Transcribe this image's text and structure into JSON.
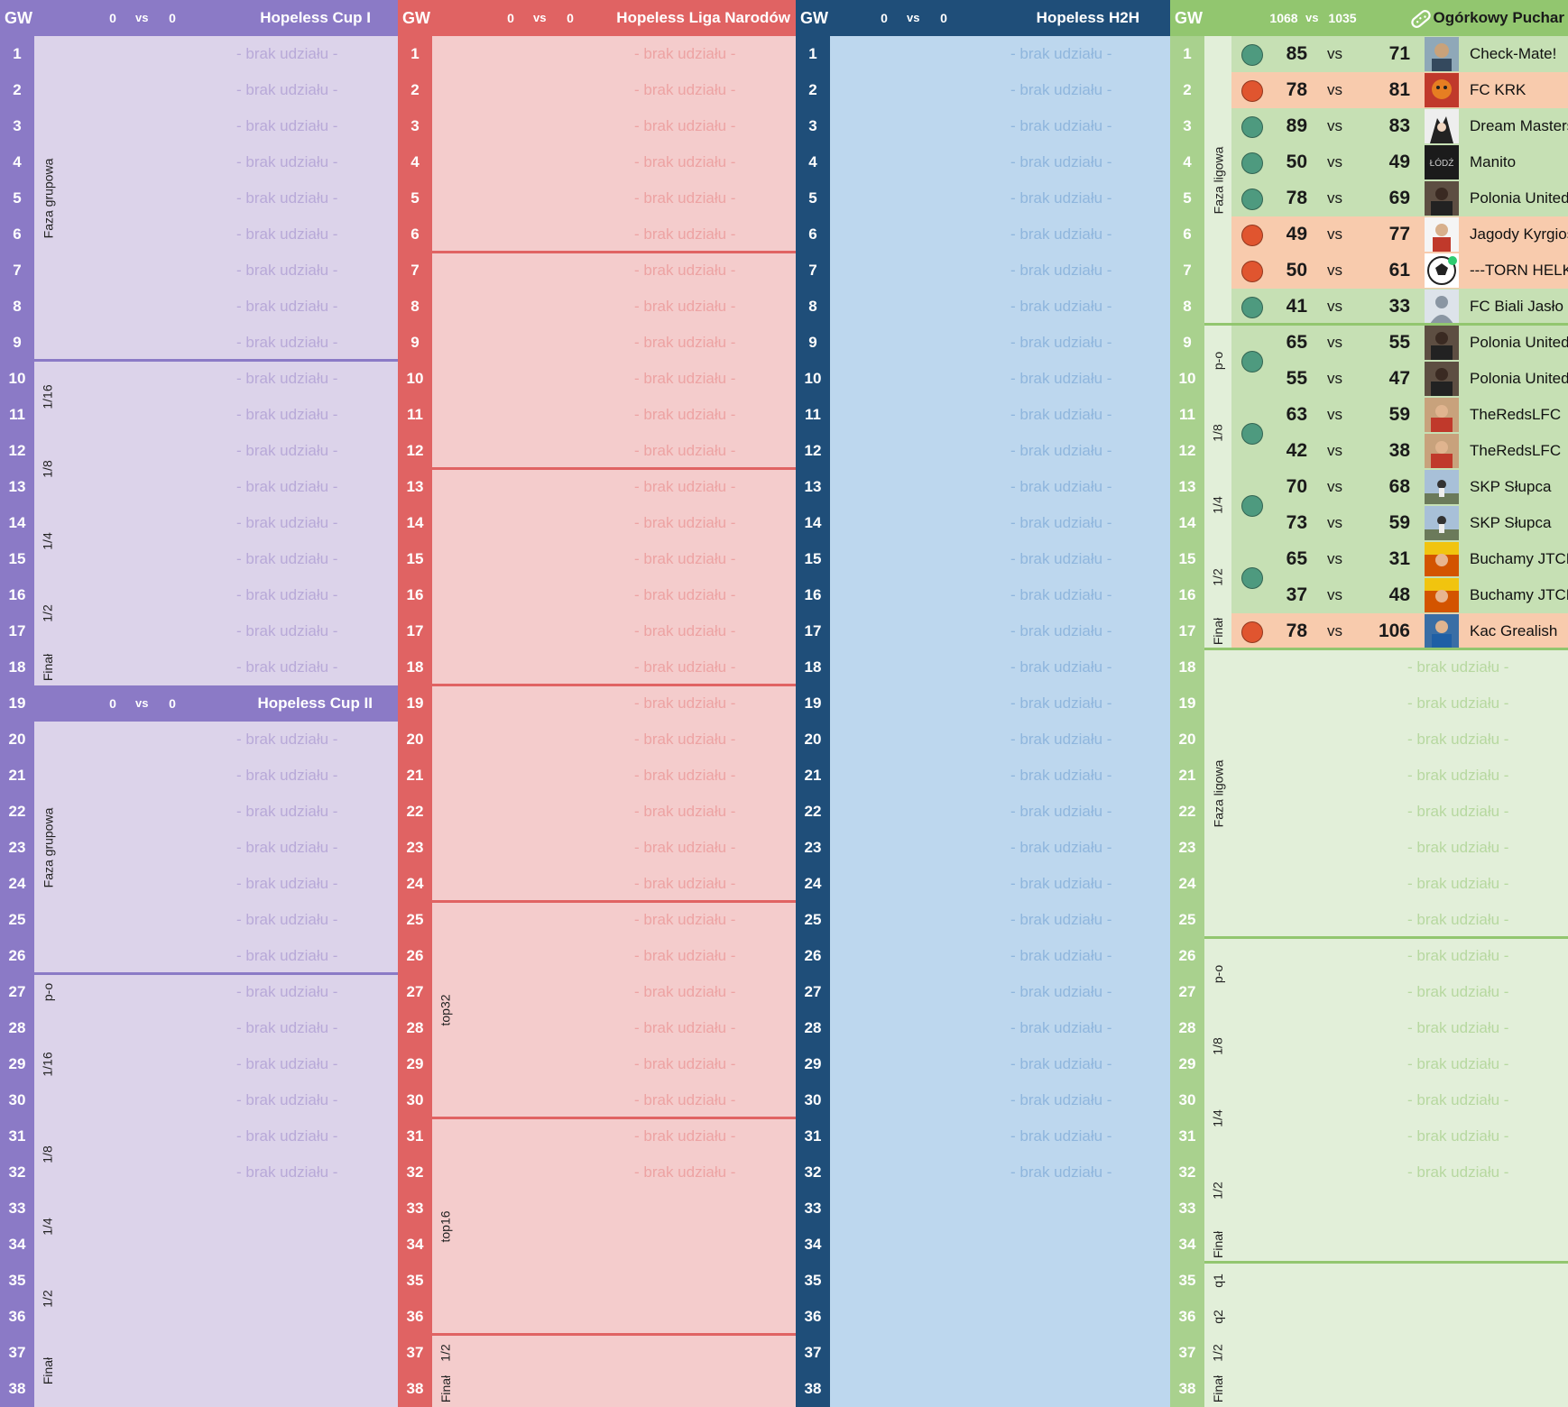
{
  "brak": "- brak udziału -",
  "gw_label": "GW",
  "vs": "vs",
  "gameweeks": [
    "1",
    "2",
    "3",
    "4",
    "5",
    "6",
    "7",
    "8",
    "9",
    "10",
    "11",
    "12",
    "13",
    "14",
    "15",
    "16",
    "17",
    "18",
    "19",
    "20",
    "21",
    "22",
    "23",
    "24",
    "25",
    "26",
    "27",
    "28",
    "29",
    "30",
    "31",
    "32",
    "33",
    "34",
    "35",
    "36",
    "37",
    "38"
  ],
  "panels": {
    "cup1": {
      "title": "Hopeless Cup I",
      "score_a": "0",
      "score_b": "0",
      "color": "#8b7ac6",
      "bg": "#dcd3ea",
      "second_title": "Hopeless Cup II",
      "second_score_a": "0",
      "second_score_b": "0",
      "stages": [
        "Faza grupowa",
        "1/16",
        "1/8",
        "1/4",
        "1/2",
        "Finał",
        "Faza grupowa",
        "p-o",
        "1/16",
        "1/8",
        "1/4",
        "1/2",
        "Finał"
      ]
    },
    "liga": {
      "title": "Hopeless Liga Narodów",
      "score_a": "0",
      "score_b": "0",
      "color": "#e06363",
      "bg": "#f4cccc",
      "stages": [
        "top32",
        "top16",
        "1/2",
        "Finał"
      ]
    },
    "h2h": {
      "title": "Hopeless H2H",
      "score_a": "0",
      "score_b": "0",
      "color": "#1f4e79",
      "bg": "#bdd7ee"
    },
    "ogorek": {
      "title": "Ogórkowy Puchar",
      "score_a": "1068",
      "score_b": "1035",
      "color": "#92c66f",
      "bg": "#e2efd9",
      "gw_bg": "#a9d18e",
      "stages": [
        "Faza ligowa",
        "p-o",
        "1/8",
        "1/4",
        "1/2",
        "Finał",
        "Faza ligowa",
        "p-o",
        "1/8",
        "1/4",
        "1/2",
        "Finał",
        "q1",
        "q2",
        "1/2",
        "Finał"
      ],
      "colors": {
        "win": "#c6e0b4",
        "loss": "#f8cbad",
        "win_dot": "#4e9a7f",
        "loss_dot": "#e0552f"
      },
      "matches": [
        {
          "gw": "1",
          "a": "85",
          "b": "71",
          "team": "Check-Mate!",
          "result": "win",
          "avatar": "av1"
        },
        {
          "gw": "2",
          "a": "78",
          "b": "81",
          "team": "FC KRK",
          "result": "loss",
          "avatar": "av2"
        },
        {
          "gw": "3",
          "a": "89",
          "b": "83",
          "team": "Dream Masters",
          "result": "win",
          "avatar": "av3"
        },
        {
          "gw": "4",
          "a": "50",
          "b": "49",
          "team": "Manito",
          "result": "win",
          "avatar": "av4"
        },
        {
          "gw": "5",
          "a": "78",
          "b": "69",
          "team": "Polonia United",
          "result": "win",
          "avatar": "av5"
        },
        {
          "gw": "6",
          "a": "49",
          "b": "77",
          "team": "Jagody Kyrgiosa",
          "result": "loss",
          "avatar": "av6"
        },
        {
          "gw": "7",
          "a": "50",
          "b": "61",
          "team": "---TORN HELKAR---",
          "result": "loss",
          "avatar": "av7"
        },
        {
          "gw": "8",
          "a": "41",
          "b": "33",
          "team": "FC Biali Jasło",
          "result": "win",
          "avatar": "av8"
        },
        {
          "gw": "9",
          "a": "65",
          "b": "55",
          "team": "Polonia United",
          "result": "win",
          "avatar": "av5"
        },
        {
          "gw": "10",
          "a": "55",
          "b": "47",
          "team": "Polonia United",
          "result": "win",
          "avatar": "av5"
        },
        {
          "gw": "11",
          "a": "63",
          "b": "59",
          "team": "TheRedsLFC",
          "result": "win",
          "avatar": "av9"
        },
        {
          "gw": "12",
          "a": "42",
          "b": "38",
          "team": "TheRedsLFC",
          "result": "win",
          "avatar": "av9"
        },
        {
          "gw": "13",
          "a": "70",
          "b": "68",
          "team": "SKP Słupca",
          "result": "win",
          "avatar": "av10"
        },
        {
          "gw": "14",
          "a": "73",
          "b": "59",
          "team": "SKP Słupca",
          "result": "win",
          "avatar": "av10"
        },
        {
          "gw": "15",
          "a": "65",
          "b": "31",
          "team": "Buchamy JTCNW",
          "result": "win",
          "avatar": "av11"
        },
        {
          "gw": "16",
          "a": "37",
          "b": "48",
          "team": "Buchamy JTCNW",
          "result": "win",
          "avatar": "av11"
        },
        {
          "gw": "17",
          "a": "78",
          "b": "106",
          "team": "Kac Grealish",
          "result": "loss",
          "avatar": "av12"
        }
      ]
    }
  }
}
